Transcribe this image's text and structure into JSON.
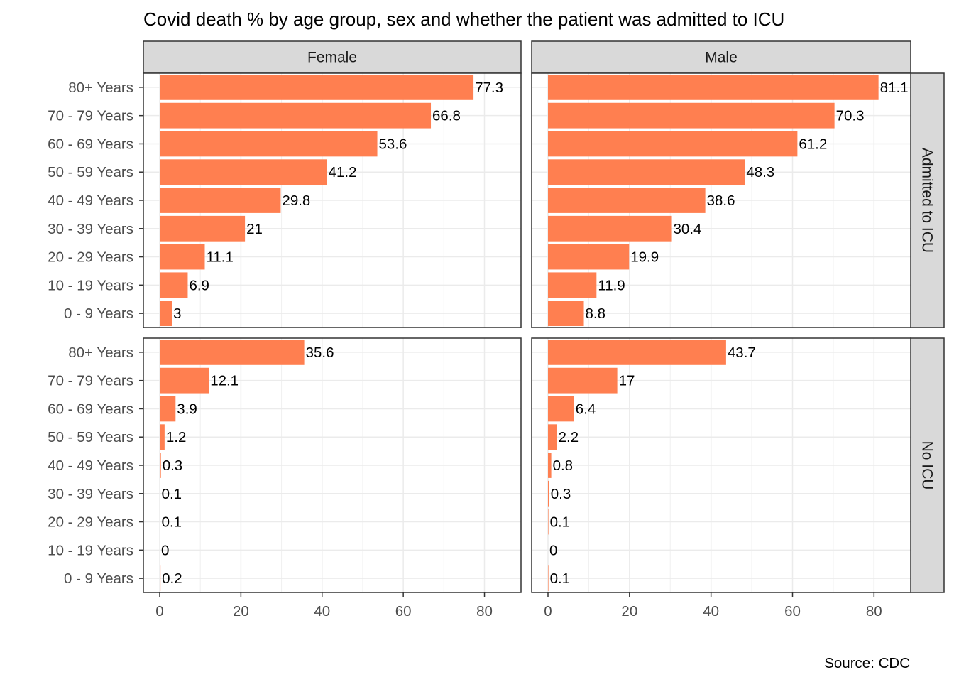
{
  "chart_data": {
    "type": "bar",
    "orientation": "horizontal",
    "title": "Covid death % by age group, sex and whether the patient was admitted to ICU",
    "caption": "Source: CDC",
    "xlabel": "",
    "ylabel": "",
    "categories": [
      "80+ Years",
      "70 - 79 Years",
      "60 - 69 Years",
      "50 - 59 Years",
      "40 - 49 Years",
      "30 - 39 Years",
      "20 - 29 Years",
      "10 - 19 Years",
      "0 - 9 Years"
    ],
    "facet_columns": [
      "Female",
      "Male"
    ],
    "facet_rows": [
      "Admitted to ICU",
      "No ICU"
    ],
    "xlim": [
      0,
      89
    ],
    "xticks": [
      0,
      20,
      40,
      60,
      80
    ],
    "grid": true,
    "legend": "none",
    "bar_color": "#FF7F50",
    "panels": [
      {
        "sex": "Female",
        "group": "Admitted to ICU",
        "values": [
          77.3,
          66.8,
          53.6,
          41.2,
          29.8,
          21,
          11.1,
          6.9,
          3
        ],
        "labels": [
          "77.3",
          "66.8",
          "53.6",
          "41.2",
          "29.8",
          "21",
          "11.1",
          "6.9",
          "3"
        ]
      },
      {
        "sex": "Male",
        "group": "Admitted to ICU",
        "values": [
          81.1,
          70.3,
          61.2,
          48.3,
          38.6,
          30.4,
          19.9,
          11.9,
          8.8
        ],
        "labels": [
          "81.1",
          "70.3",
          "61.2",
          "48.3",
          "38.6",
          "30.4",
          "19.9",
          "11.9",
          "8.8"
        ]
      },
      {
        "sex": "Female",
        "group": "No ICU",
        "values": [
          35.6,
          12.1,
          3.9,
          1.2,
          0.3,
          0.1,
          0.1,
          0,
          0.2
        ],
        "labels": [
          "35.6",
          "12.1",
          "3.9",
          "1.2",
          "0.3",
          "0.1",
          "0.1",
          "0",
          "0.2"
        ]
      },
      {
        "sex": "Male",
        "group": "No ICU",
        "values": [
          43.7,
          17,
          6.4,
          2.2,
          0.8,
          0.3,
          0.1,
          0,
          0.1
        ],
        "labels": [
          "43.7",
          "17",
          "6.4",
          "2.2",
          "0.8",
          "0.3",
          "0.1",
          "0",
          "0.1"
        ]
      }
    ]
  }
}
